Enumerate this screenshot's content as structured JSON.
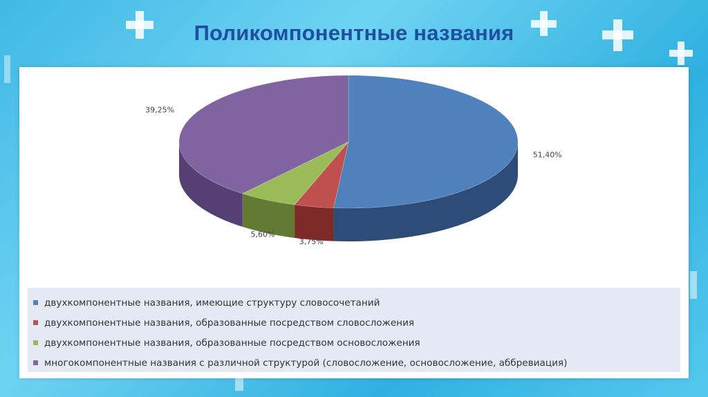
{
  "slide": {
    "title": "Поликомпонентные названия"
  },
  "chart_data": {
    "type": "pie",
    "style": "3d",
    "title": "",
    "legend_position": "bottom",
    "categories": [
      "двухкомпонентные названия, имеющие структуру словосочетаний",
      "двухкомпонентные названия, образованные посредством словосложения",
      "двухкомпонентные названия, образованные посредством основосложения",
      "многокомпонентные названия с различной структурой (словосложение, основосложение, аббревиация)"
    ],
    "values": [
      51.4,
      3.75,
      5.6,
      39.25
    ],
    "labels": [
      "51,40%",
      "3,75%",
      "5,60%",
      "39,25%"
    ],
    "colors": [
      "#4f81bd",
      "#c0504d",
      "#9bbb59",
      "#8064a2"
    ],
    "side_colors": [
      "#2d4d78",
      "#7d2a28",
      "#627a34",
      "#554073"
    ]
  }
}
